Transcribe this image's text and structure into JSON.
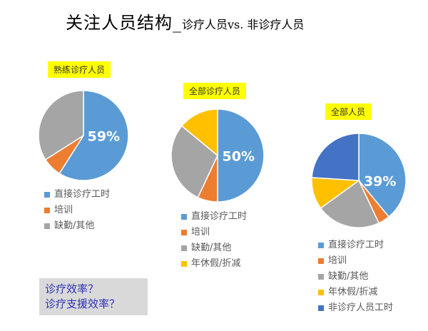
{
  "title": {
    "main": "关注人员结构_",
    "sub": "诊疗人员vs. 非诊疗人员"
  },
  "colors": {
    "direct": "#5b9bd5",
    "training": "#ed7d31",
    "absence": "#a5a5a5",
    "leave": "#ffc000",
    "non_clinical": "#4472c4",
    "tag_bg": "#ffff00",
    "note_bg": "#d9d9d9",
    "note_text": "#2e2eb8"
  },
  "charts": [
    {
      "tag": "熟练诊疗人员",
      "center_label": "59%",
      "legend": [
        "直接诊疗工时",
        "培训",
        "缺勤/其他"
      ]
    },
    {
      "tag": "全部诊疗人员",
      "center_label": "50%",
      "legend": [
        "直接诊疗工时",
        "培训",
        "缺勤/其他",
        "年休假/折减"
      ]
    },
    {
      "tag": "全部人员",
      "center_label": "39%",
      "legend": [
        "直接诊疗工时",
        "培训",
        "缺勤/其他",
        "年休假/折减",
        "非诊疗人员工时"
      ]
    }
  ],
  "note": {
    "line1": "诊疗效率？",
    "line2": "诊疗支援效率？"
  },
  "chart_data": [
    {
      "type": "pie",
      "title": "熟练诊疗人员",
      "categories": [
        "直接诊疗工时",
        "培训",
        "缺勤/其他"
      ],
      "values": [
        59,
        7,
        34
      ],
      "colors": [
        "#5b9bd5",
        "#ed7d31",
        "#a5a5a5"
      ],
      "data_labels": [
        "59%"
      ],
      "legend_position": "bottom"
    },
    {
      "type": "pie",
      "title": "全部诊疗人员",
      "categories": [
        "直接诊疗工时",
        "培训",
        "缺勤/其他",
        "年休假/折减"
      ],
      "values": [
        50,
        7,
        29,
        14
      ],
      "colors": [
        "#5b9bd5",
        "#ed7d31",
        "#a5a5a5",
        "#ffc000"
      ],
      "data_labels": [
        "50%"
      ],
      "legend_position": "bottom"
    },
    {
      "type": "pie",
      "title": "全部人员",
      "categories": [
        "直接诊疗工时",
        "培训",
        "缺勤/其他",
        "年休假/折减",
        "非诊疗人员工时"
      ],
      "values": [
        39,
        4,
        22,
        11,
        24
      ],
      "colors": [
        "#5b9bd5",
        "#ed7d31",
        "#a5a5a5",
        "#ffc000",
        "#4472c4"
      ],
      "data_labels": [
        "39%"
      ],
      "legend_position": "bottom"
    }
  ]
}
